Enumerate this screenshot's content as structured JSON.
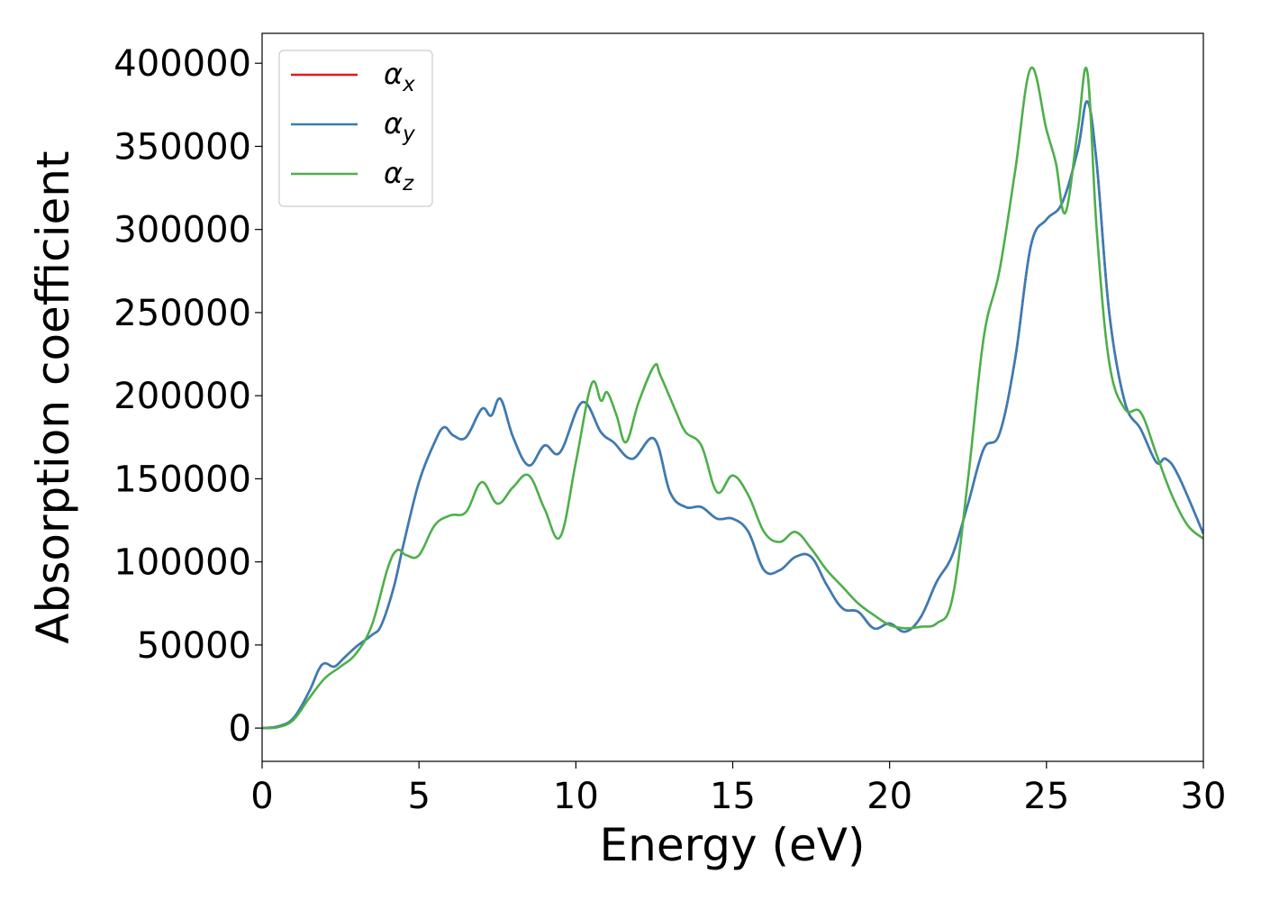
{
  "chart_data": {
    "type": "line",
    "xlabel": "Energy (eV)",
    "ylabel": "Absorption coefficient",
    "xlim": [
      0,
      30
    ],
    "ylim": [
      -20000,
      418000
    ],
    "grid": false,
    "legend_position": "top-left",
    "x_ticks": [
      "0",
      "5",
      "10",
      "15",
      "20",
      "25",
      "30"
    ],
    "y_ticks": [
      "0",
      "50000",
      "100000",
      "150000",
      "200000",
      "250000",
      "300000",
      "350000",
      "400000"
    ],
    "series": [
      {
        "name": "αx",
        "symbol": "α",
        "subscript": "x",
        "color": "#e41a1c",
        "x": [
          0,
          0.5,
          1,
          1.5,
          1.8,
          2,
          2.3,
          2.6,
          3,
          3.5,
          3.8,
          4.2,
          4.5,
          5,
          5.5,
          5.8,
          6.1,
          6.5,
          7,
          7.3,
          7.6,
          8,
          8.5,
          9,
          9.5,
          10.2,
          10.8,
          11.2,
          11.8,
          12.5,
          13,
          13.5,
          14,
          14.5,
          15,
          15.5,
          16,
          16.5,
          17,
          17.5,
          18,
          18.5,
          19,
          19.5,
          20,
          20.5,
          21,
          21.5,
          22,
          22.5,
          23,
          23.5,
          24,
          24.5,
          25,
          25.5,
          26,
          26.3,
          26.6,
          27,
          27.5,
          28,
          28.5,
          28.8,
          29.2,
          30
        ],
        "values": [
          0,
          1000,
          6000,
          22000,
          35000,
          39000,
          37000,
          42000,
          49000,
          56000,
          62000,
          85000,
          110000,
          148000,
          172000,
          181000,
          176000,
          175000,
          192000,
          188000,
          198000,
          175000,
          158000,
          170000,
          166000,
          196000,
          178000,
          172000,
          162000,
          174000,
          142000,
          133000,
          133000,
          126000,
          126000,
          118000,
          95000,
          95000,
          103000,
          103000,
          86000,
          72000,
          70000,
          60000,
          63000,
          58000,
          67000,
          88000,
          104000,
          135000,
          168000,
          177000,
          222000,
          290000,
          306000,
          316000,
          348000,
          377000,
          340000,
          250000,
          196000,
          180000,
          160000,
          162000,
          152000,
          117000
        ]
      },
      {
        "name": "αy",
        "symbol": "α",
        "subscript": "y",
        "color": "#377eb8",
        "x": [
          0,
          0.5,
          1,
          1.5,
          1.8,
          2,
          2.3,
          2.6,
          3,
          3.5,
          3.8,
          4.2,
          4.5,
          5,
          5.5,
          5.8,
          6.1,
          6.5,
          7,
          7.3,
          7.6,
          8,
          8.5,
          9,
          9.5,
          10.2,
          10.8,
          11.2,
          11.8,
          12.5,
          13,
          13.5,
          14,
          14.5,
          15,
          15.5,
          16,
          16.5,
          17,
          17.5,
          18,
          18.5,
          19,
          19.5,
          20,
          20.5,
          21,
          21.5,
          22,
          22.5,
          23,
          23.5,
          24,
          24.5,
          25,
          25.5,
          26,
          26.3,
          26.6,
          27,
          27.5,
          28,
          28.5,
          28.8,
          29.2,
          30
        ],
        "values": [
          0,
          1000,
          6000,
          22000,
          35000,
          39000,
          37000,
          42000,
          49000,
          56000,
          62000,
          85000,
          110000,
          148000,
          172000,
          181000,
          176000,
          175000,
          192000,
          188000,
          198000,
          175000,
          158000,
          170000,
          166000,
          196000,
          178000,
          172000,
          162000,
          174000,
          142000,
          133000,
          133000,
          126000,
          126000,
          118000,
          95000,
          95000,
          103000,
          103000,
          86000,
          72000,
          70000,
          60000,
          63000,
          58000,
          67000,
          88000,
          104000,
          135000,
          168000,
          177000,
          222000,
          290000,
          306000,
          316000,
          348000,
          377000,
          340000,
          250000,
          196000,
          180000,
          160000,
          162000,
          152000,
          117000
        ]
      },
      {
        "name": "αz",
        "symbol": "α",
        "subscript": "z",
        "color": "#4daf4a",
        "x": [
          0,
          0.5,
          1,
          1.5,
          2,
          2.5,
          3,
          3.5,
          4,
          4.3,
          4.6,
          5,
          5.5,
          6,
          6.5,
          7,
          7.5,
          8,
          8.5,
          9,
          9.5,
          10,
          10.5,
          10.8,
          11,
          11.3,
          11.6,
          12,
          12.5,
          12.7,
          13.2,
          13.5,
          14,
          14.5,
          15,
          15.5,
          16,
          16.5,
          17,
          17.5,
          18,
          18.5,
          19,
          19.5,
          20,
          20.5,
          21,
          21.5,
          22,
          22.5,
          23,
          23.5,
          24,
          24.5,
          25,
          25.3,
          25.6,
          26,
          26.3,
          26.6,
          27,
          27.5,
          28,
          28.5,
          29,
          29.5,
          30
        ],
        "values": [
          0,
          500,
          5000,
          18000,
          30000,
          37000,
          45000,
          62000,
          96000,
          107000,
          104000,
          104000,
          122000,
          128000,
          130000,
          148000,
          135000,
          145000,
          152000,
          132000,
          115000,
          160000,
          207000,
          197000,
          202000,
          188000,
          172000,
          196000,
          218000,
          212000,
          190000,
          178000,
          170000,
          142000,
          152000,
          140000,
          118000,
          112000,
          118000,
          108000,
          95000,
          85000,
          75000,
          68000,
          62000,
          60000,
          61000,
          63000,
          78000,
          150000,
          235000,
          275000,
          335000,
          397000,
          360000,
          340000,
          310000,
          360000,
          395000,
          300000,
          220000,
          192000,
          190000,
          165000,
          140000,
          122000,
          114000
        ]
      }
    ]
  }
}
